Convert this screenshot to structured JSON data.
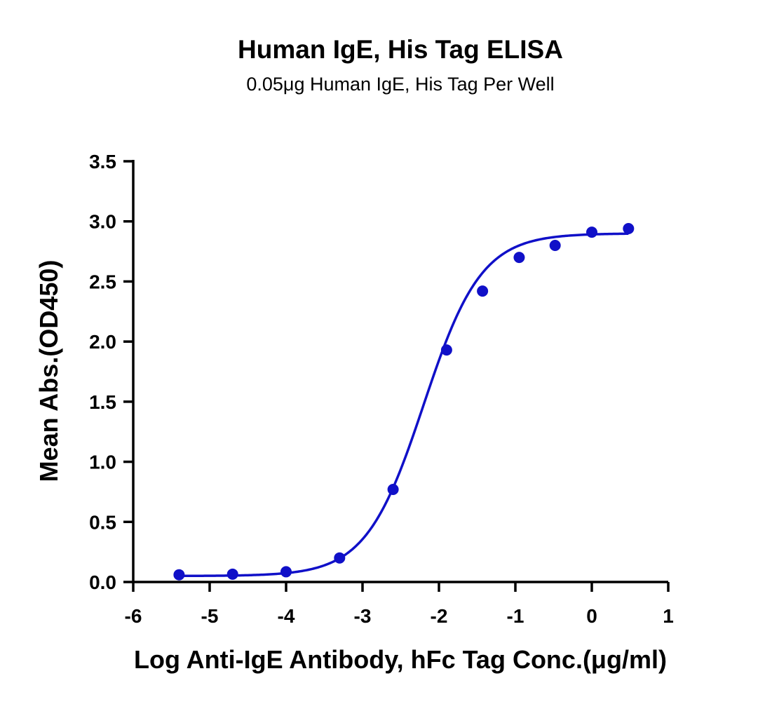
{
  "chart_data": {
    "type": "scatter",
    "title": "Human IgE, His Tag ELISA",
    "subtitle": "0.05μg Human IgE, His Tag Per Well",
    "xlabel": "Log Anti-IgE Antibody, hFc Tag Conc.(μg/ml)",
    "ylabel": "Mean Abs.(OD450)",
    "xlim": [
      -6,
      1
    ],
    "ylim": [
      0,
      3.5
    ],
    "xticks": [
      "-6",
      "-5",
      "-4",
      "-3",
      "-2",
      "-1",
      "0",
      "1"
    ],
    "yticks": [
      "0.0",
      "0.5",
      "1.0",
      "1.5",
      "2.0",
      "2.5",
      "3.0",
      "3.5"
    ],
    "grid": false,
    "color": "#1010c8",
    "series": [
      {
        "x": [
          -5.4,
          -4.7,
          -4.0,
          -3.3,
          -2.6,
          -1.9,
          -1.43,
          -0.95,
          -0.48,
          0.0,
          0.48
        ],
        "y": [
          0.06,
          0.065,
          0.085,
          0.2,
          0.77,
          1.93,
          2.42,
          2.7,
          2.8,
          2.91,
          2.94
        ],
        "fit": "sigmoidal (4PL)"
      }
    ]
  }
}
